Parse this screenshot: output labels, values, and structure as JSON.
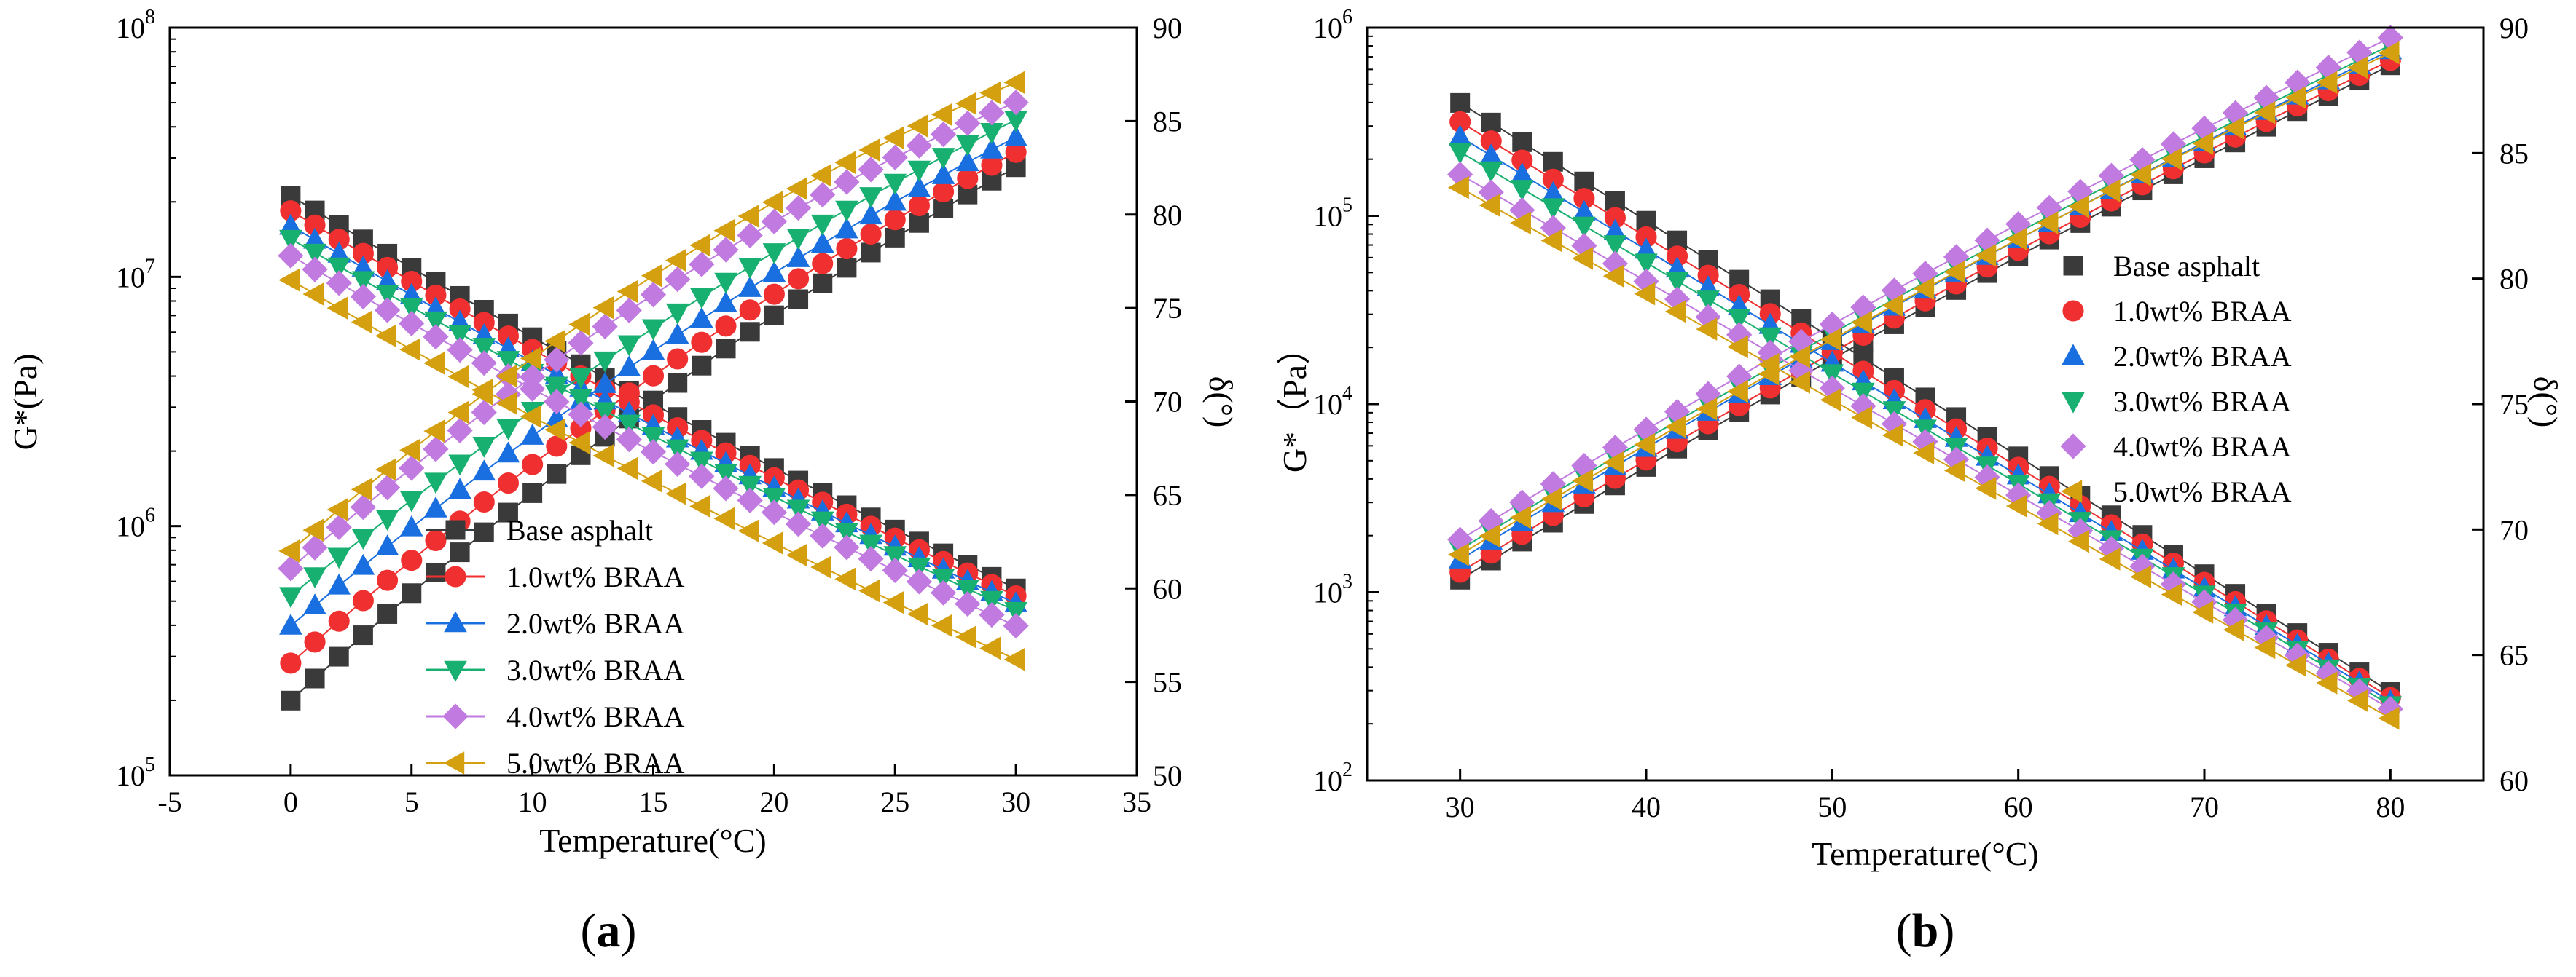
{
  "colors": {
    "base": "#3a3a3a",
    "s1": "#f03030",
    "s2": "#1a6fe0",
    "s3": "#18b070",
    "s4": "#c07ae0",
    "s5": "#d4a010",
    "axis": "#000000"
  },
  "chart_data": [
    {
      "type": "scatter",
      "panel_caption_prefix": "(",
      "panel_caption_letter": "a",
      "panel_caption_suffix": ")",
      "xlabel": "Temperature(°C)",
      "ylabel": "G*(Pa)",
      "y2label": "δ(°)",
      "xlim": [
        -5,
        35
      ],
      "xticks": [
        "-5",
        "0",
        "5",
        "10",
        "15",
        "20",
        "25",
        "30",
        "35"
      ],
      "xtick_values": [
        -5,
        0,
        5,
        10,
        15,
        20,
        25,
        30,
        35
      ],
      "y_scale": "log",
      "ylim_log10": [
        5,
        8
      ],
      "yticks": [
        {
          "base": "10",
          "exp": "5"
        },
        {
          "base": "10",
          "exp": "6"
        },
        {
          "base": "10",
          "exp": "7"
        },
        {
          "base": "10",
          "exp": "8"
        }
      ],
      "ytick_values_log10": [
        5,
        6,
        7,
        8
      ],
      "y2lim": [
        50,
        90
      ],
      "y2ticks": [
        "50",
        "55",
        "60",
        "65",
        "70",
        "75",
        "80",
        "85",
        "90"
      ],
      "y2tick_values": [
        50,
        55,
        60,
        65,
        70,
        75,
        80,
        85,
        90
      ],
      "legend_position": "center-bottom",
      "legend_style": "line-marker",
      "x": [
        0,
        30
      ],
      "series": [
        {
          "name": "Base asphalt",
          "color_key": "base",
          "marker": "square",
          "G_log10": [
            5.3,
            7.44
          ],
          "delta": [
            81.0,
            60.0
          ],
          "g_curv": 0.25
        },
        {
          "name": "1.0wt% BRAA",
          "color_key": "s1",
          "marker": "circle",
          "G_log10": [
            5.45,
            7.5
          ],
          "delta": [
            80.2,
            59.6
          ],
          "g_curv": 0.25
        },
        {
          "name": "2.0wt% BRAA",
          "color_key": "s2",
          "marker": "triangle-up",
          "G_log10": [
            5.6,
            7.56
          ],
          "delta": [
            79.4,
            59.2
          ],
          "g_curv": 0.25
        },
        {
          "name": "3.0wt% BRAA",
          "color_key": "s3",
          "marker": "triangle-down",
          "G_log10": [
            5.72,
            7.63
          ],
          "delta": [
            78.7,
            58.8
          ],
          "g_curv": 0.25
        },
        {
          "name": "4.0wt% BRAA",
          "color_key": "s4",
          "marker": "diamond",
          "G_log10": [
            5.83,
            7.7
          ],
          "delta": [
            77.8,
            58.0
          ],
          "g_curv": 0.35
        },
        {
          "name": "5.0wt% BRAA",
          "color_key": "s5",
          "marker": "triangle-left",
          "G_log10": [
            5.9,
            7.78
          ],
          "delta": [
            76.5,
            56.2
          ],
          "g_curv": 0.35
        }
      ]
    },
    {
      "type": "scatter",
      "panel_caption_prefix": "(",
      "panel_caption_letter": "b",
      "panel_caption_suffix": ")",
      "xlabel": "Temperature(°C)",
      "ylabel": "G*（Pa）",
      "y2label": "δ(°)",
      "xlim": [
        25,
        85
      ],
      "xticks": [
        "30",
        "40",
        "50",
        "60",
        "70",
        "80"
      ],
      "xtick_values": [
        30,
        40,
        50,
        60,
        70,
        80
      ],
      "y_scale": "log",
      "ylim_log10": [
        2,
        6
      ],
      "yticks": [
        {
          "base": "10",
          "exp": "2"
        },
        {
          "base": "10",
          "exp": "3"
        },
        {
          "base": "10",
          "exp": "4"
        },
        {
          "base": "10",
          "exp": "5"
        },
        {
          "base": "10",
          "exp": "6"
        }
      ],
      "ytick_values_log10": [
        2,
        3,
        4,
        5,
        6
      ],
      "y2lim": [
        60,
        90
      ],
      "y2ticks": [
        "60",
        "65",
        "70",
        "75",
        "80",
        "85",
        "90"
      ],
      "y2tick_values": [
        60,
        65,
        70,
        75,
        80,
        85,
        90
      ],
      "legend_position": "right-center",
      "legend_style": "marker-only",
      "x": [
        30,
        80
      ],
      "series": [
        {
          "name": "Base asphalt",
          "color_key": "base",
          "marker": "square",
          "G_log10": [
            5.6,
            2.47
          ],
          "delta": [
            68.0,
            88.5
          ],
          "g_curv": 0.0
        },
        {
          "name": "1.0wt% BRAA",
          "color_key": "s1",
          "marker": "circle",
          "G_log10": [
            5.5,
            2.44
          ],
          "delta": [
            68.3,
            88.7
          ],
          "g_curv": 0.0
        },
        {
          "name": "2.0wt% BRAA",
          "color_key": "s2",
          "marker": "triangle-up",
          "G_log10": [
            5.42,
            2.42
          ],
          "delta": [
            68.8,
            89.1
          ],
          "g_curv": 0.0
        },
        {
          "name": "3.0wt% BRAA",
          "color_key": "s3",
          "marker": "triangle-down",
          "G_log10": [
            5.34,
            2.4
          ],
          "delta": [
            69.2,
            89.3
          ],
          "g_curv": 0.0
        },
        {
          "name": "4.0wt% BRAA",
          "color_key": "s4",
          "marker": "diamond",
          "G_log10": [
            5.22,
            2.38
          ],
          "delta": [
            69.6,
            89.6
          ],
          "g_curv": 0.0
        },
        {
          "name": "5.0wt% BRAA",
          "color_key": "s5",
          "marker": "triangle-left",
          "G_log10": [
            5.15,
            2.33
          ],
          "delta": [
            69.0,
            89.0
          ],
          "g_curv": 0.0
        }
      ]
    }
  ]
}
